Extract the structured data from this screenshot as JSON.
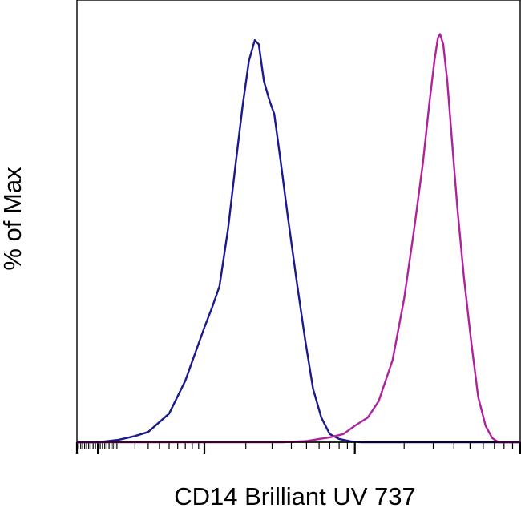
{
  "chart_data": {
    "type": "line",
    "title": "",
    "xlabel": "CD14 Brilliant UV 737",
    "ylabel": "% of Max",
    "x_scale": "log",
    "xlim": [
      -100,
      100000
    ],
    "ylim": [
      0,
      100
    ],
    "grid": false,
    "legend": "none",
    "series": [
      {
        "color": "#1a1a8c",
        "points": [
          [
            -100,
            0
          ],
          [
            0,
            0
          ],
          [
            100,
            0.6
          ],
          [
            200,
            1.5
          ],
          [
            300,
            2.5
          ],
          [
            500,
            7
          ],
          [
            700,
            15
          ],
          [
            1000,
            28
          ],
          [
            1150,
            33
          ],
          [
            1300,
            38
          ],
          [
            1500,
            52
          ],
          [
            1700,
            68
          ],
          [
            1900,
            82
          ],
          [
            2100,
            93
          ],
          [
            2300,
            98
          ],
          [
            2450,
            97
          ],
          [
            2650,
            88
          ],
          [
            2900,
            83
          ],
          [
            3100,
            80
          ],
          [
            3400,
            69
          ],
          [
            3800,
            55
          ],
          [
            4300,
            40
          ],
          [
            4900,
            25
          ],
          [
            5500,
            13
          ],
          [
            6200,
            6
          ],
          [
            7000,
            2
          ],
          [
            8000,
            0.8
          ],
          [
            9500,
            0.2
          ],
          [
            11000,
            0
          ],
          [
            100000,
            0
          ]
        ]
      },
      {
        "color": "#b0219e",
        "points": [
          [
            -100,
            0
          ],
          [
            3500,
            0
          ],
          [
            5000,
            0.3
          ],
          [
            6000,
            0.8
          ],
          [
            7000,
            1.2
          ],
          [
            8500,
            2
          ],
          [
            10000,
            4
          ],
          [
            12000,
            6
          ],
          [
            14000,
            10
          ],
          [
            17000,
            20
          ],
          [
            20000,
            35
          ],
          [
            23000,
            52
          ],
          [
            26000,
            68
          ],
          [
            28500,
            83
          ],
          [
            30500,
            93
          ],
          [
            32000,
            98.5
          ],
          [
            33000,
            99.5
          ],
          [
            34500,
            97
          ],
          [
            36500,
            88
          ],
          [
            39000,
            73
          ],
          [
            42000,
            57
          ],
          [
            46000,
            40
          ],
          [
            51000,
            24
          ],
          [
            56000,
            11
          ],
          [
            62000,
            4
          ],
          [
            68000,
            1
          ],
          [
            74000,
            0
          ],
          [
            100000,
            0
          ]
        ]
      }
    ]
  }
}
